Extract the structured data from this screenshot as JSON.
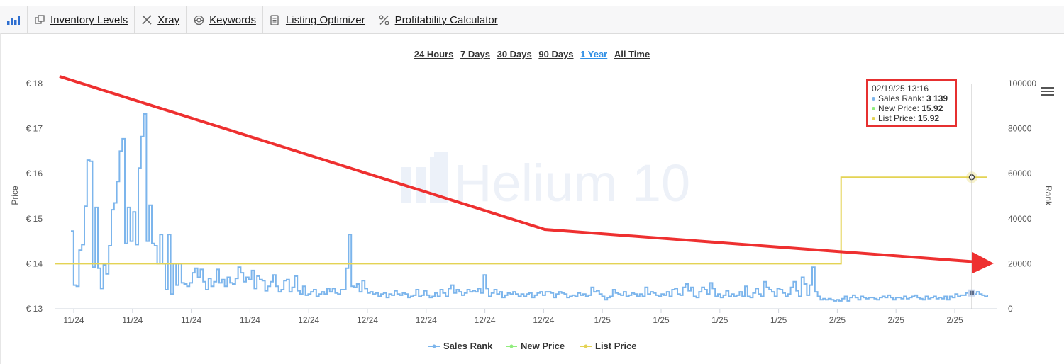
{
  "toolbar": {
    "logo_icon": "bar-chart-icon",
    "items": [
      {
        "label": "Inventory Levels",
        "icon": "inventory-icon"
      },
      {
        "label": "Xray",
        "icon": "xray-icon"
      },
      {
        "label": "Keywords",
        "icon": "keywords-icon"
      },
      {
        "label": "Listing Optimizer",
        "icon": "document-icon"
      },
      {
        "label": "Profitability Calculator",
        "icon": "percent-icon"
      }
    ]
  },
  "ranges": {
    "options": [
      "24 Hours",
      "7 Days",
      "30 Days",
      "90 Days",
      "1 Year",
      "All Time"
    ],
    "active": "1 Year"
  },
  "watermark": "Helium 10",
  "tooltip": {
    "date": "02/19/25 13:16",
    "rows": [
      {
        "label": "Sales Rank:",
        "value": "3 139",
        "color": "#7cb5ec"
      },
      {
        "label": "New Price:",
        "value": "15.92",
        "color": "#90ed7d"
      },
      {
        "label": "List Price:",
        "value": "15.92",
        "color": "#e4d354"
      }
    ]
  },
  "chart_data": {
    "type": "line",
    "ylabel_left": "Price",
    "ylabel_right": "Rank",
    "yticks_left": [
      "€ 13",
      "€ 14",
      "€ 15",
      "€ 16",
      "€ 17",
      "€ 18"
    ],
    "yticks_right": [
      "0",
      "20000",
      "40000",
      "60000",
      "80000",
      "100000"
    ],
    "ylim_left": [
      13,
      18
    ],
    "ylim_right": [
      0,
      100000
    ],
    "xticks": [
      "11/24",
      "11/24",
      "11/24",
      "11/24",
      "12/24",
      "12/24",
      "12/24",
      "12/24",
      "12/24",
      "1/25",
      "1/25",
      "1/25",
      "1/25",
      "2/25",
      "2/25",
      "2/25"
    ],
    "legend": [
      "Sales Rank",
      "New Price",
      "List Price"
    ],
    "legend_colors": [
      "#7cb5ec",
      "#90ed7d",
      "#e4d354"
    ],
    "series": [
      {
        "name": "Sales Rank",
        "axis": "right",
        "color": "#7cb5ec",
        "values": [
          34500,
          10500,
          10000,
          26000,
          28500,
          45500,
          66000,
          65500,
          18500,
          45000,
          18000,
          9000,
          19500,
          15500,
          28000,
          44000,
          47000,
          56500,
          70000,
          75500,
          29000,
          45000,
          30000,
          43000,
          28500,
          62500,
          76500,
          86500,
          30000,
          46000,
          29000,
          28000,
          20000,
          33000,
          20000,
          8500,
          33000,
          6500,
          20000,
          10500,
          20000,
          11500,
          11000,
          10000,
          11500,
          16000,
          18000,
          14000,
          17500,
          12000,
          8500,
          13500,
          10000,
          12000,
          17500,
          11500,
          13000,
          10000,
          14000,
          11500,
          11000,
          13500,
          18500,
          16000,
          12000,
          14000,
          13000,
          17000,
          9000,
          14500,
          13000,
          12500,
          8000,
          10000,
          12000,
          15000,
          10000,
          7500,
          8500,
          12500,
          13000,
          7500,
          9500,
          14500,
          8000,
          6500,
          10000,
          6000,
          6500,
          7500,
          8500,
          5500,
          6500,
          7500,
          6500,
          9000,
          7500,
          9000,
          7000,
          6500,
          8500,
          8500,
          18000,
          33000,
          10000,
          9500,
          11000,
          7500,
          12500,
          9000,
          7000,
          7500,
          6500,
          7000,
          5500,
          6500,
          7000,
          5000,
          6500,
          6000,
          8000,
          6500,
          6000,
          7000,
          6500,
          5000,
          5500,
          6000,
          8500,
          5500,
          6000,
          8000,
          6000,
          5000,
          5500,
          7000,
          5500,
          8500,
          7000,
          5500,
          9000,
          10500,
          7000,
          8500,
          7500,
          6000,
          7000,
          8500,
          7500,
          8000,
          7500,
          9000,
          7000,
          15000,
          9000,
          5500,
          7000,
          8500,
          6500,
          7500,
          5000,
          6000,
          7000,
          6500,
          7500,
          6500,
          5500,
          6500,
          5500,
          6500,
          7000,
          5000,
          6000,
          7000,
          7500,
          6000,
          7500,
          7500,
          7000,
          5000,
          6500,
          7500,
          7000,
          6500,
          5000,
          5500,
          6000,
          5500,
          7000,
          6000,
          6500,
          5500,
          6000,
          9500,
          7500,
          8000,
          6500,
          5500,
          4000,
          5000,
          5500,
          8500,
          7000,
          6500,
          6000,
          7500,
          5500,
          6000,
          7000,
          6500,
          5500,
          6500,
          5500,
          9500,
          6500,
          7500,
          7000,
          6000,
          5500,
          6500,
          6000,
          7500,
          5500,
          8500,
          9000,
          6500,
          6000,
          9500,
          11000,
          8000,
          9500,
          5500,
          5000,
          7500,
          9500,
          8500,
          6500,
          11500,
          9000,
          5500,
          6500,
          5000,
          6000,
          8000,
          5500,
          6500,
          5500,
          6000,
          7500,
          5500,
          10000,
          5500,
          5000,
          7000,
          9000,
          6500,
          5500,
          12000,
          9500,
          8500,
          7500,
          5500,
          9000,
          8500,
          7000,
          5500,
          6500,
          9500,
          12000,
          8000,
          5500,
          14000,
          11000,
          6000,
          10500,
          18500,
          7500,
          5500,
          4000,
          4500,
          4000,
          4500,
          4000,
          3500,
          4000,
          3500,
          4500,
          5500,
          3500,
          5000,
          6000,
          5000,
          4000,
          5500,
          5000,
          4500,
          5000,
          5000,
          4500,
          4000,
          5000,
          5500,
          5000,
          6000,
          5000,
          4000,
          5000,
          5000,
          4500,
          5500,
          4500,
          5000,
          5500,
          6000,
          5000,
          4500,
          4000,
          5500,
          4500,
          5000,
          5500,
          4500,
          5000,
          4500,
          5500,
          4000,
          5500,
          5000,
          6500,
          5500,
          6000,
          6000,
          7000,
          7500,
          7000,
          6500,
          7500,
          6500,
          6000,
          5500,
          6000
        ]
      },
      {
        "name": "List Price",
        "axis": "left",
        "color": "#e4d354",
        "points": [
          [
            0,
            14.0
          ],
          [
            0.843,
            14.0
          ],
          [
            0.843,
            15.92
          ],
          [
            1,
            15.92
          ]
        ]
      }
    ]
  }
}
